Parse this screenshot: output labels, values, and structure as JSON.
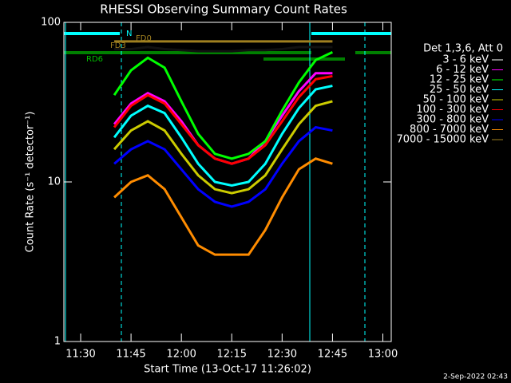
{
  "chart_data": {
    "type": "line",
    "title": "RHESSI Observing Summary Count Rates",
    "xlabel": "Start Time (13-Oct-17 11:26:02)",
    "ylabel": "Count Rate (s⁻¹ detector⁻¹)",
    "legend_title": "Det 1,3,6, Att 0",
    "footer": "2-Sep-2022 02:43",
    "annotations": [
      "N",
      "FD3",
      "FD0",
      "RD6"
    ],
    "log_y": true,
    "xlim": [
      685,
      782.5
    ],
    "xticks": [
      {
        "value": 690,
        "label": "11:30"
      },
      {
        "value": 705,
        "label": "11:45"
      },
      {
        "value": 720,
        "label": "12:00"
      },
      {
        "value": 735,
        "label": "12:15"
      },
      {
        "value": 750,
        "label": "12:30"
      },
      {
        "value": 765,
        "label": "12:45"
      },
      {
        "value": 780,
        "label": "13:00"
      }
    ],
    "ylim": [
      1,
      100
    ],
    "yticks": [
      1,
      10,
      100
    ],
    "x": [
      700,
      705,
      710,
      715,
      720,
      725,
      730,
      735,
      740,
      745,
      750,
      755,
      760,
      765
    ],
    "series": [
      {
        "name": "3 - 6 keV",
        "color": "#000000",
        "values": [
          68,
          68,
          70,
          68,
          67,
          66,
          66,
          66,
          67,
          67,
          68,
          70,
          70,
          70
        ]
      },
      {
        "name": "6 - 12 keV",
        "color": "#ff00ff",
        "values": [
          23,
          31,
          36,
          32,
          24,
          17,
          14,
          13,
          14,
          18,
          26,
          37,
          48,
          48
        ]
      },
      {
        "name": "12 - 25 keV",
        "color": "#00ff00",
        "values": [
          35,
          50,
          60,
          52,
          32,
          20,
          15,
          14,
          15,
          18,
          28,
          42,
          58,
          65
        ]
      },
      {
        "name": "25 - 50 keV",
        "color": "#00ffff",
        "values": [
          19,
          26,
          30,
          27,
          19,
          13,
          10,
          9.5,
          10,
          13,
          20,
          29,
          38,
          40
        ]
      },
      {
        "name": "50 - 100 keV",
        "color": "#cccc00",
        "values": [
          16,
          21,
          24,
          21,
          15,
          11,
          9,
          8.5,
          9,
          11,
          16,
          23,
          30,
          32
        ]
      },
      {
        "name": "100 - 300 keV",
        "color": "#ff0000",
        "values": [
          22,
          30,
          35,
          31,
          23,
          17,
          14,
          13,
          14,
          17,
          24,
          34,
          44,
          46
        ]
      },
      {
        "name": "300 - 800 keV",
        "color": "#0000ff",
        "values": [
          13,
          16,
          18,
          16,
          12,
          9,
          7.5,
          7,
          7.5,
          9,
          13,
          18,
          22,
          21
        ]
      },
      {
        "name": "800 - 7000 keV",
        "color": "#ff8c00",
        "values": [
          8,
          10,
          11,
          9,
          6,
          4,
          3.5,
          3.5,
          3.5,
          5,
          8,
          12,
          14,
          13
        ]
      },
      {
        "name": "7000 - 15000 keV",
        "color": "#a08020",
        "values": [
          76,
          76,
          76,
          76,
          76,
          76,
          76,
          76,
          76,
          76,
          76,
          76,
          76,
          76
        ]
      }
    ]
  }
}
